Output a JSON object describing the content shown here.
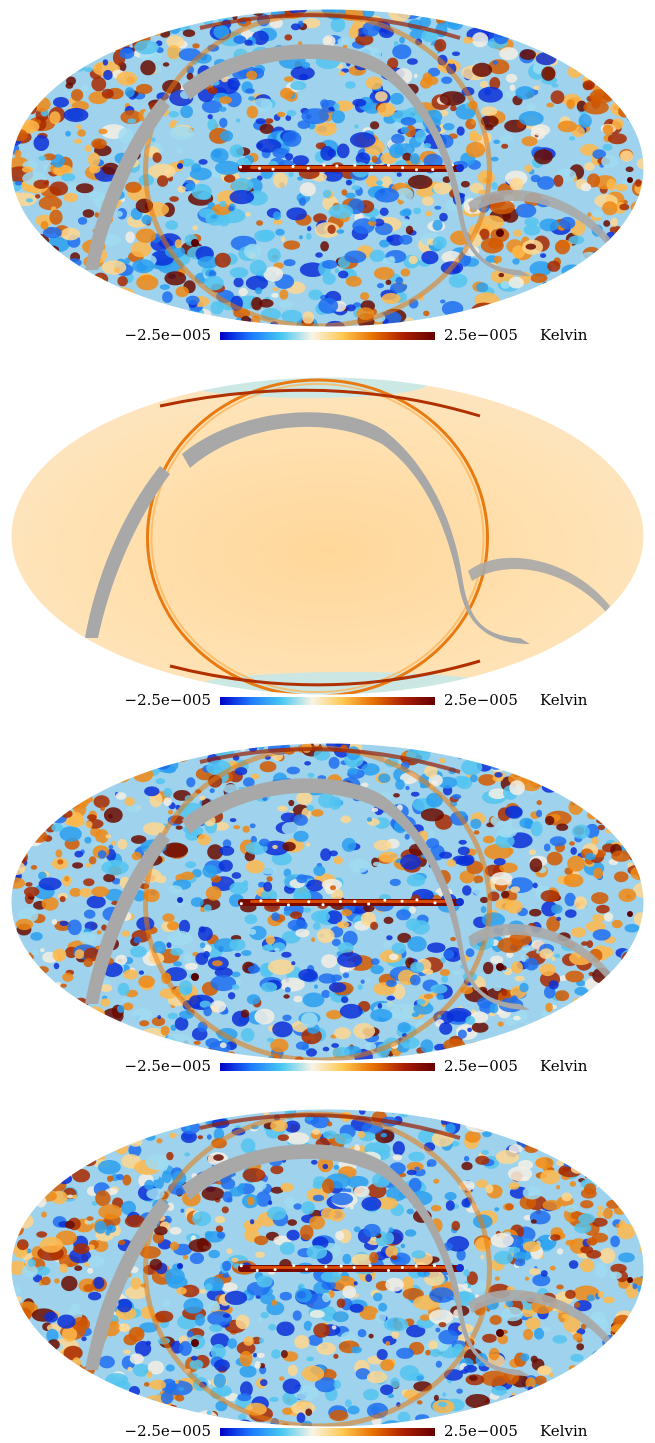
{
  "colors": {
    "mask_gray": "#a8a8a8",
    "background": "#ffffff"
  },
  "colorbar": {
    "min_label": "−2.5e−005",
    "max_label": "2.5e−005",
    "unit_label": "Kelvin",
    "stops": [
      "#0000c8",
      "#1e78ff",
      "#46c8f0",
      "#f8f4e6",
      "#ffc850",
      "#e66e00",
      "#aa1e00",
      "#640000"
    ]
  },
  "panels": [
    {
      "name": "map-1",
      "style": "noisy",
      "seed": 11
    },
    {
      "name": "map-2",
      "style": "smooth",
      "seed": 23
    },
    {
      "name": "map-3",
      "style": "noisy",
      "seed": 37
    },
    {
      "name": "map-4",
      "style": "noisy",
      "seed": 53
    }
  ]
}
